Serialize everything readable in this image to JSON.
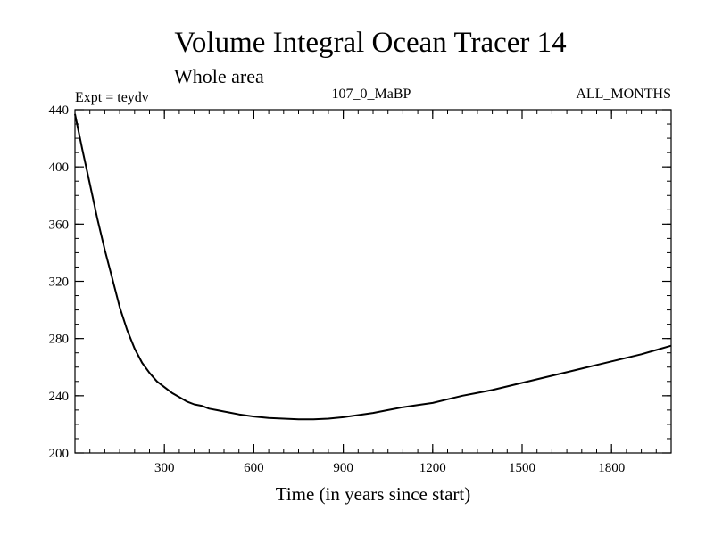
{
  "chart_data": {
    "type": "line",
    "title": "Volume Integral Ocean Tracer 14",
    "subtitle": "Whole area",
    "experiment_label": "Expt = teydv",
    "run_label": "107_0_MaBP",
    "months_label": "ALL_MONTHS",
    "xlabel": "Time (in years since start)",
    "ylabel": "",
    "xlim": [
      0,
      2000
    ],
    "ylim": [
      200,
      440
    ],
    "x_ticks": [
      300,
      600,
      900,
      1200,
      1500,
      1800
    ],
    "y_ticks": [
      200,
      240,
      280,
      320,
      360,
      400,
      440
    ],
    "grid": false,
    "series": [
      {
        "name": "Ocean Tracer 14",
        "x": [
          0,
          25,
          50,
          75,
          100,
          125,
          150,
          175,
          200,
          225,
          250,
          275,
          300,
          325,
          350,
          375,
          400,
          425,
          450,
          475,
          500,
          550,
          600,
          650,
          700,
          750,
          800,
          850,
          900,
          950,
          1000,
          1050,
          1100,
          1150,
          1200,
          1250,
          1300,
          1350,
          1400,
          1450,
          1500,
          1550,
          1600,
          1650,
          1700,
          1750,
          1800,
          1850,
          1900,
          1950,
          2000
        ],
        "values": [
          437,
          412,
          388,
          364,
          342,
          322,
          302,
          286,
          273,
          263,
          256,
          250,
          246,
          242,
          239,
          236,
          234,
          233,
          231,
          230,
          229,
          227,
          225.5,
          224.5,
          224,
          223.5,
          223.5,
          224,
          225,
          226.5,
          228,
          230,
          232,
          233.5,
          235,
          237.5,
          240,
          242,
          244,
          246.5,
          249,
          251.5,
          254,
          256.5,
          259,
          261.5,
          264,
          266.5,
          269,
          272,
          275
        ]
      }
    ]
  }
}
